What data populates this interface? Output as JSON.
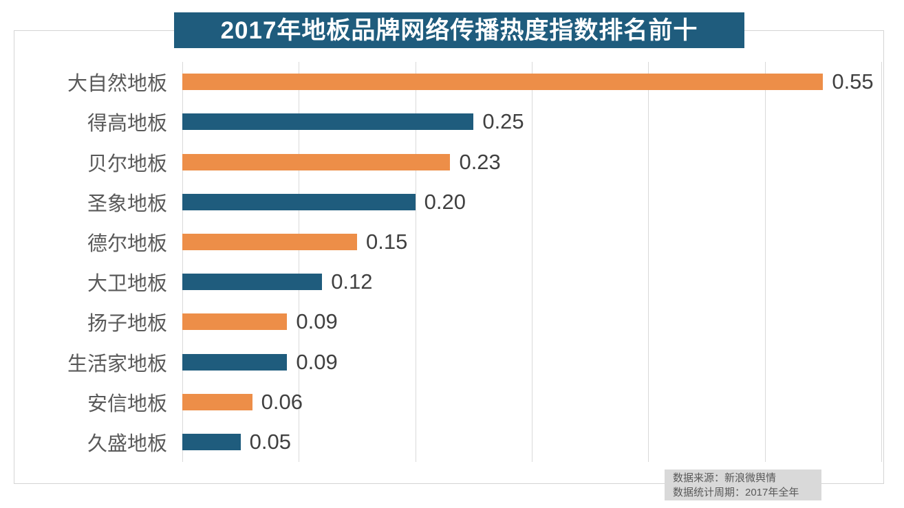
{
  "title": "2017年地板品牌网络传播热度指数排名前十",
  "colors": {
    "title_bg": "#1F5C7D",
    "orange_bar": "#ED8E48",
    "blue_bar": "#1F5C7D",
    "gridline": "#d9d9d9",
    "frame_border": "#d4d4d4",
    "category_text": "#595959",
    "value_text": "#404040",
    "source_bg": "#d9d9d9"
  },
  "source_note": {
    "line1": "数据来源：新浪微舆情",
    "line2": "数据统计周期：2017年全年"
  },
  "chart_data": {
    "type": "bar",
    "orientation": "horizontal",
    "title": "2017年地板品牌网络传播热度指数排名前十",
    "categories": [
      "大自然地板",
      "得高地板",
      "贝尔地板",
      "圣象地板",
      "德尔地板",
      "大卫地板",
      "扬子地板",
      "生活家地板",
      "安信地板",
      "久盛地板"
    ],
    "values": [
      0.55,
      0.25,
      0.23,
      0.2,
      0.15,
      0.12,
      0.09,
      0.09,
      0.06,
      0.05
    ],
    "value_labels": [
      "0.55",
      "0.25",
      "0.23",
      "0.20",
      "0.15",
      "0.12",
      "0.09",
      "0.09",
      "0.06",
      "0.05"
    ],
    "xlabel": "",
    "ylabel": "",
    "xlim": [
      0,
      0.6
    ],
    "gridline_step": 0.1,
    "grid": "vertical-only",
    "legend": "none",
    "bar_colors_alternating": [
      "#ED8E48",
      "#1F5C7D"
    ]
  }
}
